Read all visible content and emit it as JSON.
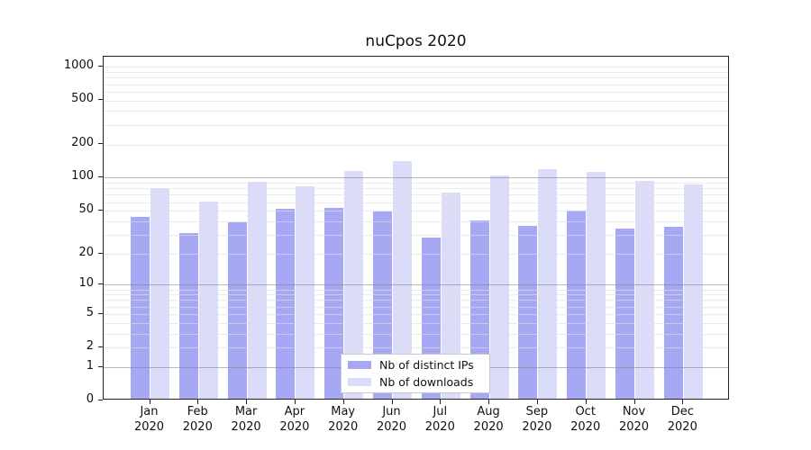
{
  "chart_data": {
    "type": "bar",
    "title": "nuCpos 2020",
    "xlabel": "",
    "ylabel": "",
    "categories": [
      "Jan",
      "Feb",
      "Mar",
      "Apr",
      "May",
      "Jun",
      "Jul",
      "Aug",
      "Sep",
      "Oct",
      "Nov",
      "Dec"
    ],
    "category_year": "2020",
    "series": [
      {
        "name": "Nb of distinct IPs",
        "color": "#a6a8f3",
        "values": [
          42,
          30,
          38,
          50,
          51,
          47,
          27,
          39,
          35,
          48,
          33,
          34
        ]
      },
      {
        "name": "Nb of downloads",
        "color": "#dadcf9",
        "values": [
          78,
          58,
          89,
          81,
          110,
          136,
          70,
          100,
          116,
          108,
          90,
          83
        ]
      }
    ],
    "yscale": "log10(1+x)",
    "yticks": [
      0,
      1,
      2,
      5,
      10,
      20,
      50,
      100,
      200,
      500,
      1000
    ],
    "ylim": [
      0,
      1100
    ],
    "grid": {
      "major_lines_at": [
        1,
        10,
        100
      ],
      "minor_lines": "2-9 of each decade plus 1000",
      "major_color": "#bdbdbd",
      "minor_color": "#e8e8e8"
    },
    "legend": {
      "position": "bottom-center",
      "background": "#ffffff",
      "border_color": "#c9c9c9"
    }
  }
}
